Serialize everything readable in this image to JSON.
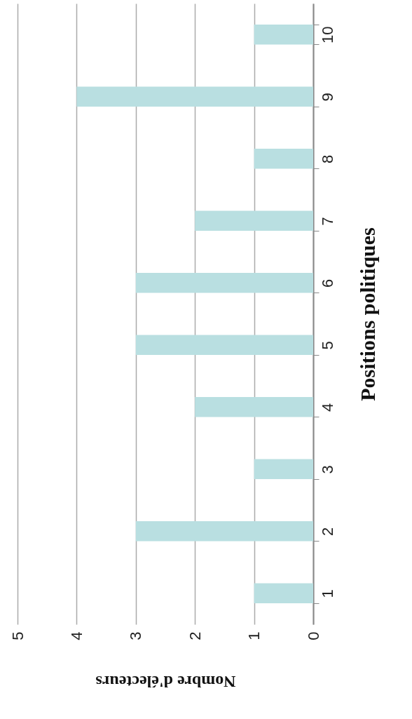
{
  "chart_data": {
    "type": "bar",
    "orientation": "horizontal",
    "xlabel": "Nombre d'électeurs",
    "ylabel": "Positions politiques",
    "categories": [
      "10",
      "9",
      "8",
      "7",
      "6",
      "5",
      "4",
      "3",
      "2",
      "1"
    ],
    "values": [
      1,
      4,
      1,
      2,
      3,
      3,
      2,
      1,
      3,
      1
    ],
    "color": "#b9dfe1",
    "xlim": [
      5,
      0
    ],
    "xticks": [
      0,
      1,
      2,
      3,
      4,
      5
    ],
    "grid": "x"
  }
}
